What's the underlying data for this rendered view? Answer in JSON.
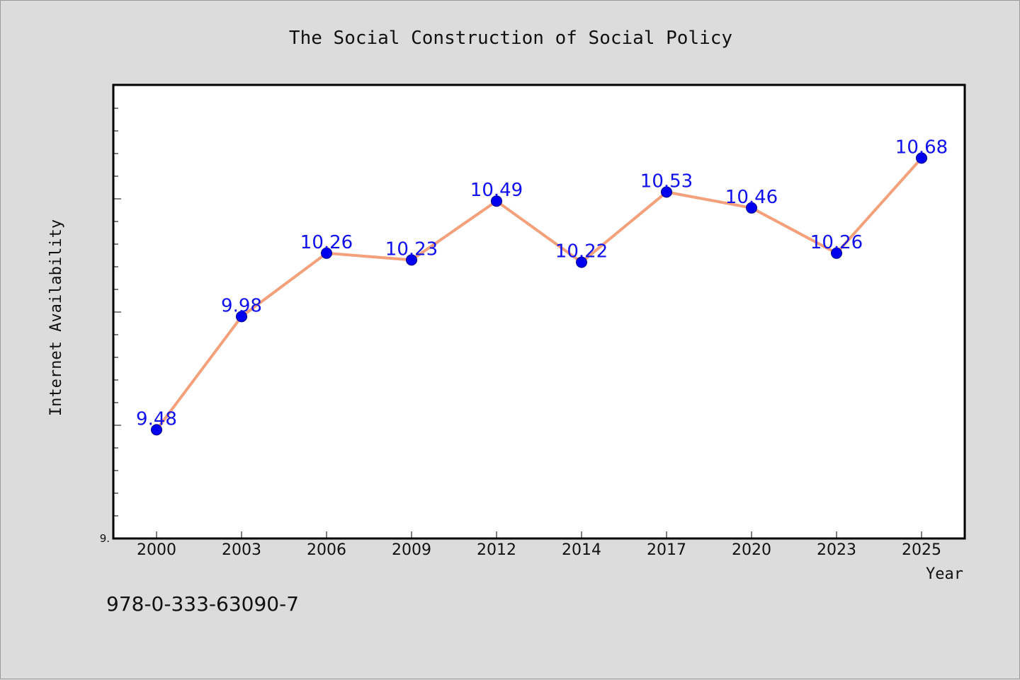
{
  "caption": "978-0-333-63090-7",
  "chart_data": {
    "type": "line",
    "title": "The Social Construction of Social Policy",
    "xlabel": "Year",
    "ylabel": "Internet Availability",
    "categories": [
      "2000",
      "2003",
      "2006",
      "2009",
      "2012",
      "2014",
      "2017",
      "2020",
      "2023",
      "2025"
    ],
    "series": [
      {
        "values": [
          9.48,
          9.98,
          10.26,
          10.23,
          10.49,
          10.22,
          10.53,
          10.46,
          10.26,
          10.68
        ],
        "labels": [
          "9.48",
          "9.98",
          "10.26",
          "10.23",
          "10.49",
          "10.22",
          "10.53",
          "10.46",
          "10.26",
          "10.68"
        ]
      }
    ],
    "ylim": [
      9.0,
      11.0
    ],
    "y_tick_labels": [
      {
        "value": 9.0,
        "label": "9."
      }
    ],
    "grid": false,
    "colors": {
      "line": "#f4a07a",
      "marker": "#0000ee",
      "label": "#1010ee",
      "plot_bg": "#ffffff",
      "figure_bg": "#dcdcdc"
    }
  }
}
